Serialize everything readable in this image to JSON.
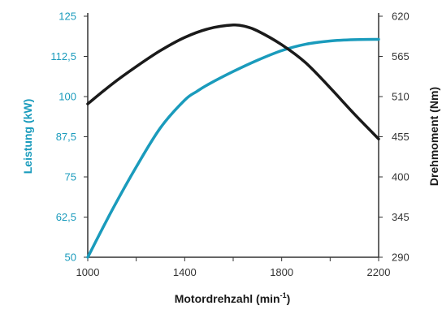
{
  "chart_data": {
    "type": "line",
    "xlabel": "Motordrehzahl (min",
    "xlabel_sup": "-1",
    "xlabel_end": ")",
    "ylabel_left": "Leistung (kW)",
    "ylabel_right": "Drehmoment (Nm)",
    "xlim": [
      1000,
      2200
    ],
    "ylim_left": [
      50,
      125
    ],
    "ylim_right": [
      290,
      620
    ],
    "x_ticks": [
      "1000",
      "1400",
      "1800",
      "2200"
    ],
    "y_left_ticks": [
      "50",
      "62,5",
      "75",
      "87,5",
      "100",
      "112,5",
      "125"
    ],
    "y_right_ticks": [
      "290",
      "345",
      "400",
      "455",
      "510",
      "565",
      "620"
    ],
    "grid": false,
    "colors": {
      "power": "#1a9bbc",
      "torque": "#1a1a1a",
      "axis": "#333333"
    },
    "series": [
      {
        "axis": "left",
        "color": "#1a9bbc",
        "x": [
          1000,
          1100,
          1200,
          1300,
          1400,
          1450,
          1500,
          1600,
          1700,
          1800,
          1900,
          2000,
          2100,
          2200
        ],
        "y": [
          50,
          64.6,
          78.1,
          90.3,
          98.9,
          101.6,
          103.9,
          107.8,
          111.3,
          114.3,
          116.3,
          117.3,
          117.7,
          117.8
        ]
      },
      {
        "axis": "right",
        "color": "#1a1a1a",
        "x": [
          1000,
          1100,
          1200,
          1300,
          1400,
          1500,
          1600,
          1650,
          1700,
          1800,
          1900,
          2000,
          2100,
          2200
        ],
        "y": [
          500,
          527,
          551,
          573,
          591,
          603,
          608,
          606,
          600,
          581,
          556,
          522,
          486,
          452
        ]
      }
    ]
  }
}
